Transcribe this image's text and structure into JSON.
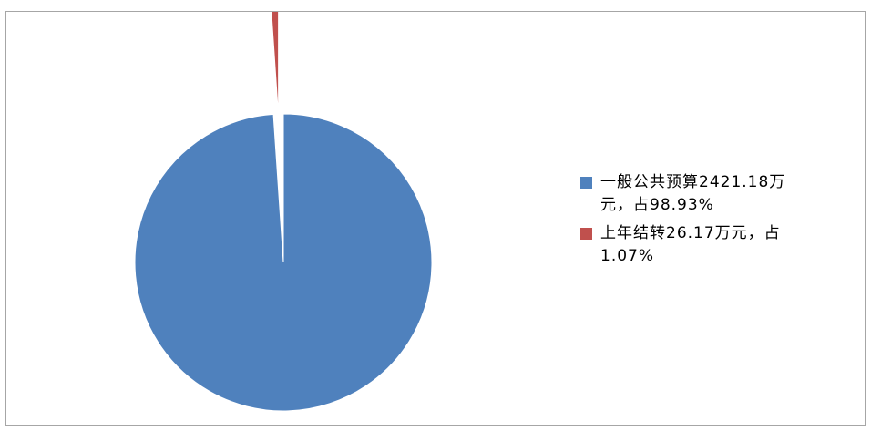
{
  "chart_data": {
    "type": "pie",
    "title": "",
    "legend_position": "right",
    "start_angle_deg": 0,
    "direction": "clockwise",
    "slices": [
      {
        "label": "一般公共预算2421.18万元，占98.93%",
        "value": 2421.18,
        "percent": 98.93,
        "color": "#4f81bd",
        "exploded": false
      },
      {
        "label": "上年结转26.17万元，占1.07%",
        "value": 26.17,
        "percent": 1.07,
        "color": "#c0504d",
        "exploded": true
      }
    ]
  },
  "legend": {
    "entries": [
      {
        "text_line1": "一般公共预算2421.18万",
        "text_line2": "元，占98.93%",
        "color": "#4f81bd"
      },
      {
        "text_line1": "上年结转26.17万元，占",
        "text_line2": "1.07%",
        "color": "#c0504d"
      }
    ]
  }
}
